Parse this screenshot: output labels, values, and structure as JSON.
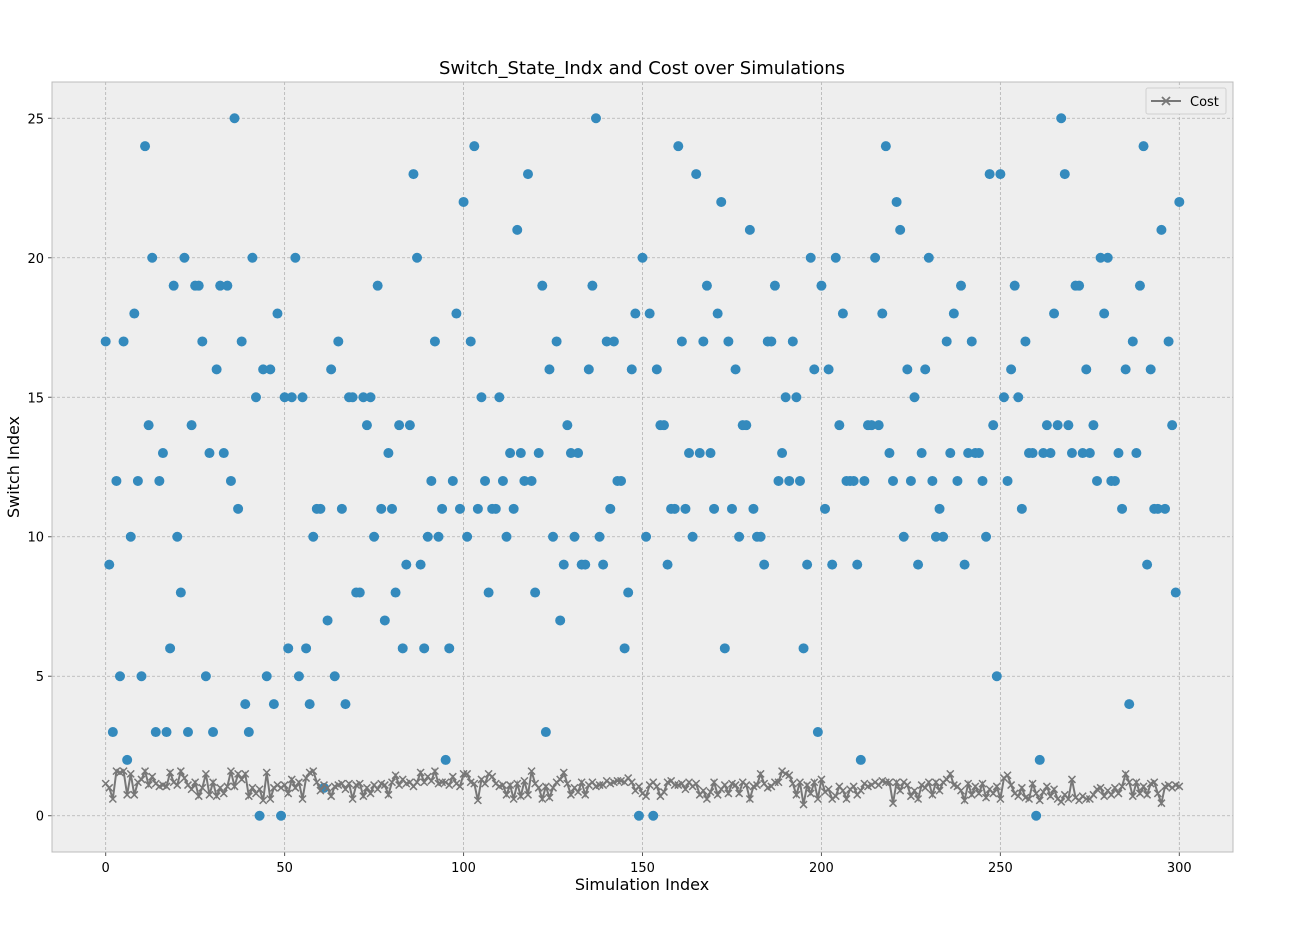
{
  "chart_data": {
    "type": "scatter",
    "title": "Switch_State_Indx and Cost over Simulations",
    "xlabel": "Simulation Index",
    "ylabel": "Switch Index",
    "xlim": [
      -15,
      315
    ],
    "ylim": [
      -1.3,
      26.3
    ],
    "xticks": [
      0,
      50,
      100,
      150,
      200,
      250,
      300
    ],
    "yticks": [
      0,
      5,
      10,
      15,
      20,
      25
    ],
    "grid": true,
    "legend_position": "top-right",
    "colors": {
      "scatter": "#348ABD",
      "cost": "#777777",
      "background": "#EEEEEE",
      "grid": "#B2B2B2"
    },
    "series": [
      {
        "type": "scatter",
        "marker": "circle",
        "x_start": 0,
        "values": [
          17,
          9,
          3,
          12,
          5,
          17,
          2,
          10,
          18,
          12,
          5,
          24,
          14,
          20,
          3,
          12,
          13,
          3,
          6,
          19,
          10,
          8,
          20,
          3,
          14,
          19,
          19,
          17,
          5,
          13,
          3,
          16,
          19,
          13,
          19,
          12,
          25,
          11,
          17,
          4,
          3,
          20,
          15,
          0,
          16,
          5,
          16,
          4,
          18,
          0,
          15,
          6,
          15,
          20,
          5,
          15,
          6,
          4,
          10,
          11,
          11,
          1,
          7,
          16,
          5,
          17,
          11,
          4,
          15,
          15,
          8,
          8,
          15,
          14,
          15,
          10,
          19,
          11,
          7,
          13,
          11,
          8,
          14,
          6,
          9,
          14,
          23,
          20,
          9,
          6,
          10,
          12,
          17,
          10,
          11,
          2,
          6,
          12,
          18,
          11,
          22,
          10,
          17,
          24,
          11,
          15,
          12,
          8,
          11,
          11,
          15,
          12,
          10,
          13,
          11,
          21,
          13,
          12,
          23,
          12,
          8,
          13,
          19,
          3,
          16,
          10,
          17,
          7,
          9,
          14,
          13,
          10,
          13,
          9,
          9,
          16,
          19,
          25,
          10,
          9,
          17,
          11,
          17,
          12,
          12,
          6,
          8,
          16,
          18,
          0,
          20,
          10,
          18,
          0,
          16,
          14,
          14,
          9,
          11,
          11,
          24,
          17,
          11,
          13,
          10,
          23,
          13,
          17,
          19,
          13,
          11,
          18,
          22,
          6,
          17,
          11,
          16,
          10,
          14,
          14,
          21,
          11,
          10,
          10,
          9,
          17,
          17,
          19,
          12,
          13,
          15,
          12,
          17,
          15,
          12,
          6,
          9,
          20,
          16,
          3,
          19,
          11,
          16,
          9,
          20,
          14,
          18,
          12,
          12,
          12,
          9,
          2,
          12,
          14,
          14,
          20,
          14,
          18,
          24,
          13,
          12,
          22,
          21,
          10,
          16,
          12,
          15,
          9,
          13,
          16,
          20,
          12,
          10,
          11,
          10,
          17,
          13,
          18,
          12,
          19,
          9,
          13,
          17,
          13,
          13,
          12,
          10,
          23,
          14,
          5,
          23,
          15,
          12,
          16,
          19,
          15,
          11,
          17,
          13,
          13,
          0,
          2,
          13,
          14,
          13,
          18,
          14,
          25,
          23,
          14,
          13,
          19,
          19,
          13,
          16,
          13,
          14,
          12,
          20,
          18,
          20,
          12,
          12,
          13,
          11,
          16,
          4,
          17,
          13,
          19,
          24,
          9,
          16,
          11,
          11,
          21,
          11,
          17,
          14,
          8,
          22
        ]
      },
      {
        "type": "line",
        "name": "Cost",
        "marker": "x",
        "x_start": 0,
        "values": [
          1.15,
          1.0,
          0.6,
          1.6,
          1.55,
          1.6,
          0.75,
          1.5,
          0.75,
          1.2,
          1.3,
          1.6,
          1.1,
          1.4,
          1.15,
          1.05,
          1.1,
          1.05,
          1.55,
          1.2,
          1.1,
          1.6,
          1.35,
          1.1,
          0.95,
          1.2,
          0.7,
          1.0,
          1.5,
          0.75,
          1.2,
          0.7,
          1.0,
          0.8,
          1.05,
          1.6,
          1.05,
          1.5,
          1.3,
          1.5,
          0.7,
          1.0,
          0.8,
          0.95,
          0.55,
          1.55,
          0.6,
          1.0,
          1.1,
          1.0,
          1.1,
          0.8,
          1.3,
          1.0,
          1.2,
          0.6,
          1.35,
          1.55,
          1.6,
          1.2,
          0.9,
          1.1,
          1.0,
          0.7,
          1.05,
          1.1,
          1.15,
          0.95,
          1.15,
          0.6,
          1.1,
          1.15,
          0.7,
          1.0,
          0.8,
          1.1,
          0.95,
          1.15,
          1.1,
          0.75,
          1.2,
          1.45,
          1.1,
          1.3,
          1.15,
          1.2,
          1.05,
          1.2,
          1.55,
          1.2,
          1.4,
          1.25,
          1.6,
          1.15,
          1.2,
          1.2,
          1.1,
          1.4,
          1.15,
          1.05,
          1.5,
          1.5,
          1.2,
          1.15,
          0.55,
          1.3,
          1.15,
          1.5,
          1.4,
          1.15,
          1.05,
          1.1,
          0.75,
          1.1,
          0.6,
          1.15,
          0.7,
          1.25,
          0.75,
          1.6,
          1.15,
          1.0,
          0.6,
          1.05,
          0.65,
          1.0,
          1.2,
          1.3,
          1.55,
          1.15,
          0.75,
          1.0,
          0.85,
          1.2,
          0.75,
          1.1,
          1.2,
          1.05,
          1.1,
          1.1,
          1.25,
          1.15,
          1.2,
          1.25,
          1.25,
          1.2,
          1.35,
          1.2,
          0.9,
          1.05,
          0.8,
          0.7,
          1.1,
          1.2,
          1.05,
          0.7,
          0.85,
          1.2,
          1.25,
          1.1,
          1.1,
          1.15,
          0.95,
          1.2,
          1.05,
          1.15,
          0.75,
          0.9,
          0.6,
          0.85,
          1.2,
          0.75,
          0.95,
          1.1,
          0.8,
          1.15,
          1.1,
          0.8,
          1.2,
          1.1,
          0.6,
          1.05,
          1.1,
          1.5,
          1.15,
          1.0,
          1.05,
          1.2,
          1.2,
          1.6,
          1.5,
          1.45,
          1.15,
          0.75,
          1.2,
          0.4,
          1.1,
          0.8,
          1.2,
          0.6,
          1.3,
          0.85,
          0.95,
          0.6,
          0.7,
          1.05,
          0.9,
          0.6,
          0.95,
          1.05,
          0.75,
          0.9,
          1.15,
          1.05,
          1.1,
          1.2,
          1.1,
          1.25,
          1.2,
          1.2,
          0.45,
          1.2,
          0.9,
          1.2,
          1.1,
          0.7,
          0.9,
          0.6,
          1.1,
          1.0,
          1.2,
          0.75,
          1.2,
          0.9,
          1.2,
          1.3,
          1.5,
          1.1,
          1.05,
          0.9,
          0.55,
          1.15,
          0.75,
          1.05,
          0.8,
          1.15,
          0.65,
          0.95,
          0.8,
          1.05,
          0.6,
          1.35,
          1.45,
          1.1,
          0.8,
          0.7,
          1.0,
          0.65,
          0.6,
          1.15,
          0.8,
          0.55,
          0.85,
          1.05,
          0.7,
          0.95,
          0.6,
          0.5,
          0.75,
          0.6,
          1.3,
          0.65,
          0.55,
          0.7,
          0.6,
          0.6,
          0.75,
          0.95,
          1.0,
          0.7,
          0.9,
          0.75,
          1.0,
          0.8,
          1.05,
          1.5,
          1.2,
          0.7,
          1.2,
          0.8,
          1.05,
          0.75,
          1.15,
          1.2,
          0.8,
          0.45,
          1.05,
          1.1,
          1.0,
          1.1,
          1.05
        ]
      }
    ]
  }
}
